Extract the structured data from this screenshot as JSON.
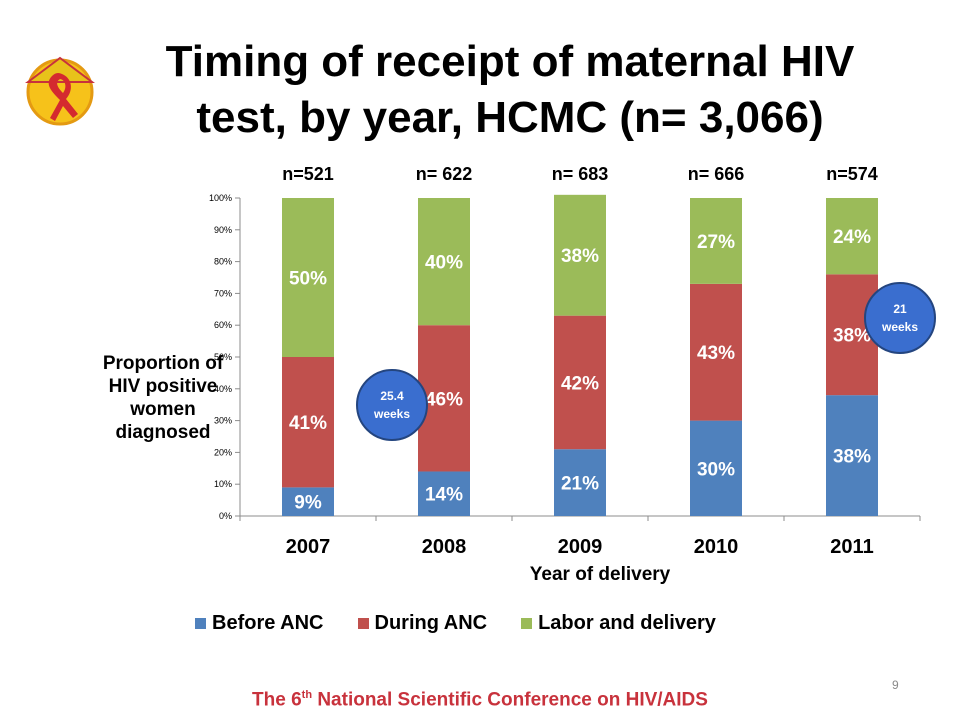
{
  "title": {
    "line1": "Timing of receipt of maternal HIV",
    "line2": "test, by year, HCMC (n= 3,066)"
  },
  "y_axis_label": {
    "line1": "Proportion of",
    "line2": "HIV positive",
    "line3": "women",
    "line4": "diagnosed"
  },
  "x_axis_label": "Year of delivery",
  "callouts": [
    {
      "line1": "25.4",
      "line2": "weeks"
    },
    {
      "line1": "21",
      "line2": "weeks"
    }
  ],
  "footer": {
    "prefix": "The 6",
    "sup": "th",
    "suffix": " National Scientific Conference on HIV/AIDS"
  },
  "page_number": "9",
  "colors": {
    "before_anc": "#4f81bd",
    "during_anc": "#c0504d",
    "labor_delivery": "#9bbb59",
    "footer": "#c8323c",
    "callout": "#3a6ecf"
  },
  "chart_data": {
    "type": "bar",
    "stacked": true,
    "categories": [
      "2007",
      "2008",
      "2009",
      "2010",
      "2011"
    ],
    "n_labels": [
      "n=521",
      "n= 622",
      "n= 683",
      "n= 666",
      "n=574"
    ],
    "series": [
      {
        "name": "Before ANC",
        "values": [
          9,
          14,
          21,
          30,
          38
        ],
        "labels": [
          "9%",
          "14%",
          "21%",
          "30%",
          "38%"
        ],
        "color": "#4f81bd"
      },
      {
        "name": "During ANC",
        "values": [
          41,
          46,
          42,
          43,
          38
        ],
        "labels": [
          "41%",
          "46%",
          "42%",
          "43%",
          "38%"
        ],
        "color": "#c0504d"
      },
      {
        "name": "Labor and delivery",
        "values": [
          50,
          40,
          38,
          27,
          24
        ],
        "labels": [
          "50%",
          "40%",
          "38%",
          "27%",
          "24%"
        ],
        "color": "#9bbb59"
      }
    ],
    "y_ticks": [
      "0%",
      "10%",
      "20%",
      "30%",
      "40%",
      "50%",
      "60%",
      "70%",
      "80%",
      "90%",
      "100%"
    ],
    "ylim": [
      0,
      100
    ],
    "xlabel": "Year of delivery",
    "ylabel": "Proportion of HIV positive women diagnosed",
    "grid": false,
    "legend_position": "bottom"
  }
}
